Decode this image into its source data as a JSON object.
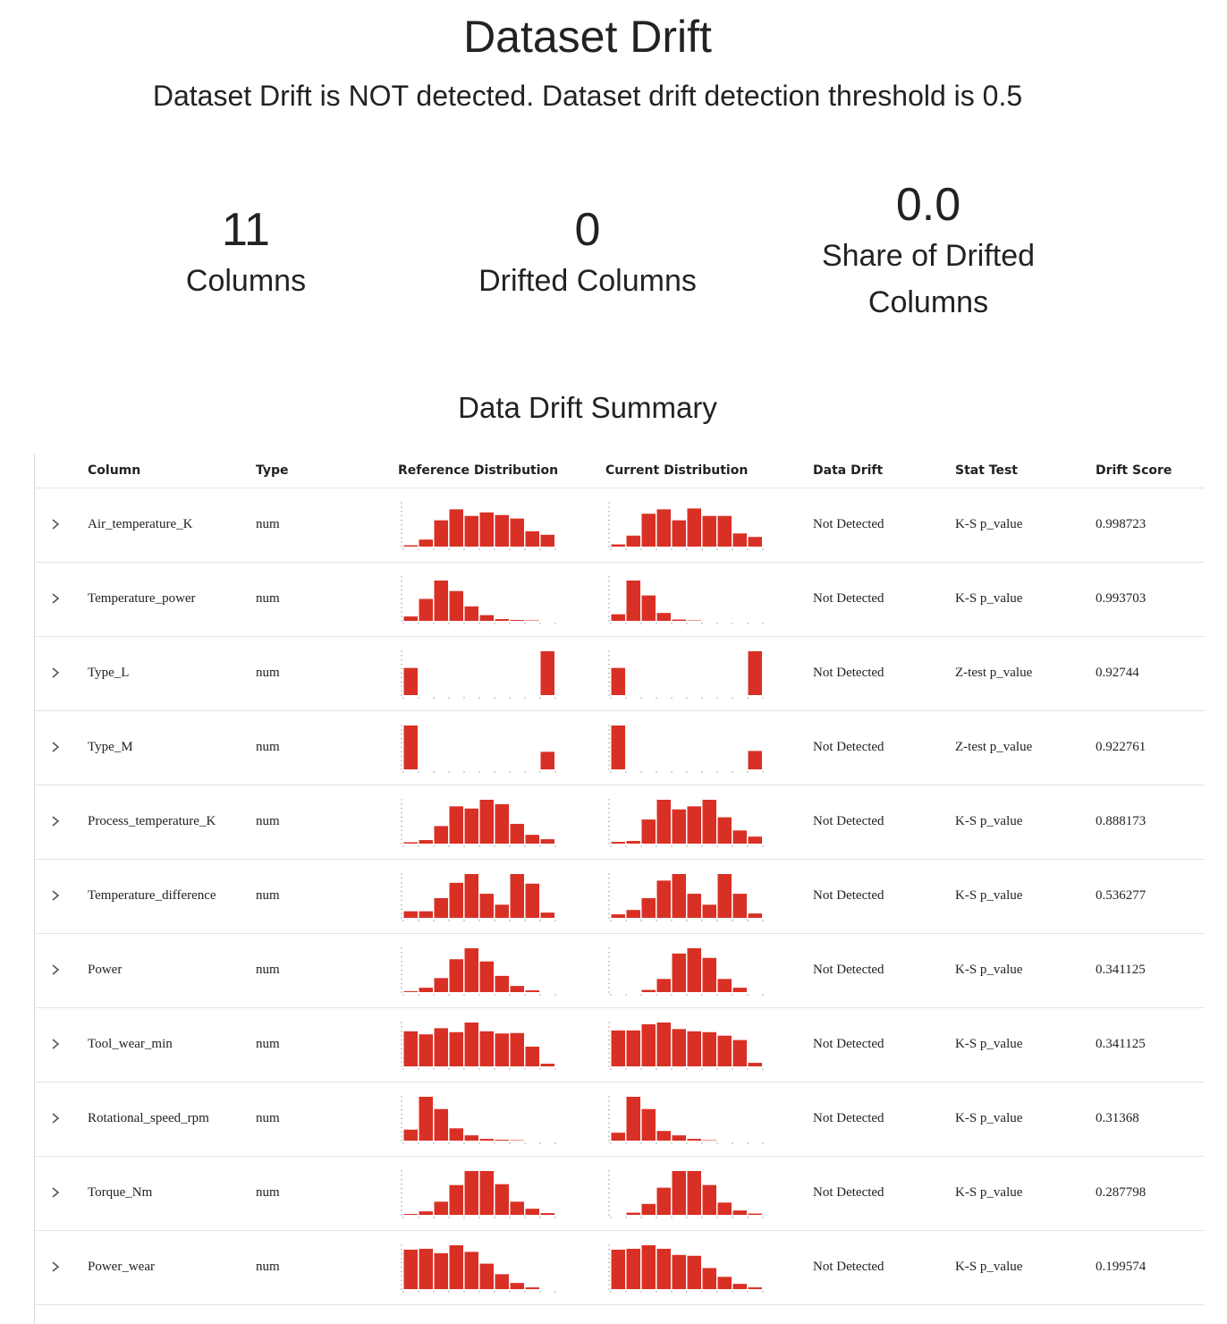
{
  "header": {
    "title": "Dataset Drift",
    "subtitle": "Dataset Drift is NOT detected. Dataset drift detection threshold is 0.5"
  },
  "stats": {
    "columns_value": "11",
    "columns_label": "Columns",
    "drifted_value": "0",
    "drifted_label": "Drifted Columns",
    "share_value": "0.0",
    "share_label_line1": "Share of Drifted",
    "share_label_line2": "Columns"
  },
  "summary": {
    "title": "Data Drift Summary",
    "headers": {
      "column": "Column",
      "type": "Type",
      "reference": "Reference Distribution",
      "current": "Current Distribution",
      "drift": "Data Drift",
      "stat_test": "Stat Test",
      "score": "Drift Score"
    },
    "bar_color": "#d93025",
    "rows": [
      {
        "column": "Air_temperature_K",
        "type": "num",
        "drift": "Not Detected",
        "stat_test": "K-S p_value",
        "score": "0.998723",
        "ref": [
          3,
          16,
          60,
          85,
          70,
          78,
          72,
          64,
          35,
          27
        ],
        "cur": [
          5,
          25,
          75,
          85,
          60,
          87,
          70,
          70,
          30,
          22
        ]
      },
      {
        "column": "Temperature_power",
        "type": "num",
        "drift": "Not Detected",
        "stat_test": "K-S p_value",
        "score": "0.993703",
        "ref": [
          10,
          50,
          92,
          68,
          33,
          13,
          4,
          2,
          1,
          0
        ],
        "cur": [
          15,
          92,
          58,
          18,
          3,
          1,
          0,
          0,
          0,
          0
        ]
      },
      {
        "column": "Type_L",
        "type": "num",
        "drift": "Not Detected",
        "stat_test": "Z-test p_value",
        "score": "0.92744",
        "ref": [
          62,
          0,
          0,
          0,
          0,
          0,
          0,
          0,
          0,
          100
        ],
        "cur": [
          62,
          0,
          0,
          0,
          0,
          0,
          0,
          0,
          0,
          100
        ]
      },
      {
        "column": "Type_M",
        "type": "num",
        "drift": "Not Detected",
        "stat_test": "Z-test p_value",
        "score": "0.922761",
        "ref": [
          100,
          0,
          0,
          0,
          0,
          0,
          0,
          0,
          0,
          40
        ],
        "cur": [
          100,
          0,
          0,
          0,
          0,
          0,
          0,
          0,
          0,
          42
        ]
      },
      {
        "column": "Process_temperature_K",
        "type": "num",
        "drift": "Not Detected",
        "stat_test": "K-S p_value",
        "score": "0.888173",
        "ref": [
          3,
          8,
          40,
          85,
          80,
          100,
          90,
          45,
          20,
          10
        ],
        "cur": [
          4,
          6,
          55,
          100,
          78,
          85,
          100,
          60,
          30,
          16
        ]
      },
      {
        "column": "Temperature_difference",
        "type": "num",
        "drift": "Not Detected",
        "stat_test": "K-S p_value",
        "score": "0.536277",
        "ref": [
          15,
          15,
          45,
          80,
          100,
          55,
          30,
          100,
          78,
          12
        ],
        "cur": [
          8,
          18,
          45,
          85,
          100,
          55,
          30,
          100,
          55,
          10
        ]
      },
      {
        "column": "Power",
        "type": "num",
        "drift": "Not Detected",
        "stat_test": "K-S p_value",
        "score": "0.341125",
        "ref": [
          2,
          10,
          32,
          75,
          100,
          70,
          37,
          14,
          4,
          0
        ],
        "cur": [
          0,
          0,
          5,
          30,
          88,
          100,
          78,
          30,
          10,
          0
        ]
      },
      {
        "column": "Tool_wear_min",
        "type": "num",
        "drift": "Not Detected",
        "stat_test": "K-S p_value",
        "score": "0.341125",
        "ref": [
          80,
          73,
          87,
          78,
          100,
          80,
          75,
          76,
          45,
          6
        ],
        "cur": [
          82,
          82,
          96,
          100,
          85,
          80,
          78,
          70,
          60,
          8
        ]
      },
      {
        "column": "Rotational_speed_rpm",
        "type": "num",
        "drift": "Not Detected",
        "stat_test": "K-S p_value",
        "score": "0.31368",
        "ref": [
          25,
          100,
          72,
          28,
          12,
          4,
          2,
          1,
          0,
          0
        ],
        "cur": [
          18,
          100,
          72,
          22,
          12,
          4,
          1,
          0,
          0,
          0
        ]
      },
      {
        "column": "Torque_Nm",
        "type": "num",
        "drift": "Not Detected",
        "stat_test": "K-S p_value",
        "score": "0.287798",
        "ref": [
          2,
          8,
          30,
          68,
          100,
          100,
          70,
          30,
          14,
          4
        ],
        "cur": [
          0,
          5,
          25,
          62,
          100,
          100,
          68,
          28,
          10,
          3
        ]
      },
      {
        "column": "Power_wear",
        "type": "num",
        "drift": "Not Detected",
        "stat_test": "K-S p_value",
        "score": "0.199574",
        "ref": [
          90,
          92,
          82,
          100,
          85,
          58,
          34,
          14,
          4,
          0
        ],
        "cur": [
          90,
          92,
          100,
          92,
          78,
          76,
          48,
          28,
          12,
          4
        ]
      }
    ]
  }
}
